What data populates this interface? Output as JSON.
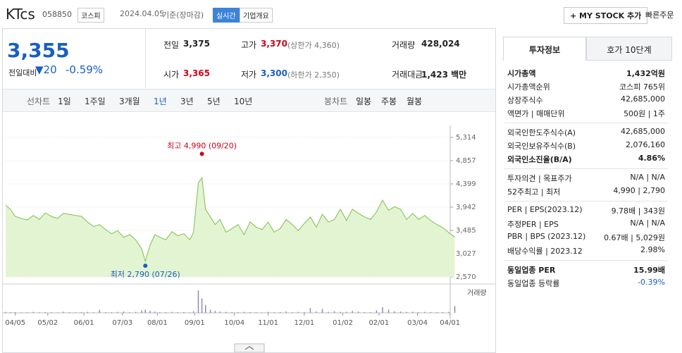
{
  "header": {
    "name": "KTcs",
    "code": "058850",
    "market": "코스피",
    "date": "2024.04.05",
    "basis": "기준(장마감)",
    "realtime": "실시간",
    "company_info": "기업개요",
    "my_stock": "+ MY STOCK 추가",
    "quick_order": "빠른주문"
  },
  "price": {
    "current": "3,355",
    "change_label": "전일대비",
    "change": "20",
    "rate": "-0.59%"
  },
  "quotes": [
    [
      {
        "label": "전일",
        "value": "3,375"
      },
      {
        "label": "고가",
        "value": "3,370",
        "limit": "(상한가 4,360)"
      },
      {
        "label": "거래량",
        "value": "428,024"
      }
    ],
    [
      {
        "label": "시가",
        "value": "3,365"
      },
      {
        "label": "저가",
        "value": "3,300",
        "limit": "(하한가 2,350)"
      },
      {
        "label": "거래대금",
        "value": "1,423 백만"
      }
    ]
  ],
  "periods": {
    "line_label": "선차트",
    "line": [
      "1일",
      "1주일",
      "3개월",
      "1년",
      "3년",
      "5년",
      "10년"
    ],
    "candle_label": "봉차트",
    "candle": [
      "일봉",
      "주봉",
      "월봉"
    ]
  },
  "chart_data": {
    "type": "area",
    "color": "#7cc04a",
    "volume_label": "거래량",
    "x": [
      -8,
      -4,
      0,
      5,
      10,
      15,
      20,
      25,
      30,
      35,
      40,
      45,
      50,
      55,
      60,
      65,
      70,
      75,
      80,
      85,
      90,
      95,
      100,
      105,
      108,
      112,
      116,
      120,
      125,
      130,
      135,
      140,
      145,
      148,
      152,
      155,
      158,
      162,
      166,
      170,
      175,
      180,
      185,
      190,
      195,
      200,
      205,
      210,
      215,
      220,
      225,
      230,
      235,
      240,
      245,
      250,
      255,
      260,
      265,
      270,
      275,
      280,
      285,
      290,
      295,
      300,
      305,
      310,
      315,
      320,
      325,
      330,
      335,
      340,
      345,
      350,
      355,
      360,
      365
    ],
    "series": [
      {
        "name": "주가",
        "values": [
          3980,
          3900,
          3760,
          3720,
          3690,
          3780,
          3700,
          3830,
          3760,
          3720,
          3820,
          3800,
          3780,
          3760,
          3650,
          3560,
          3600,
          3500,
          3420,
          3480,
          3350,
          3400,
          3300,
          3120,
          2880,
          3200,
          3400,
          3350,
          3300,
          3460,
          3380,
          3420,
          3300,
          3450,
          4420,
          4520,
          3900,
          3750,
          3600,
          3700,
          3450,
          3520,
          3600,
          3400,
          3650,
          3550,
          3500,
          3650,
          3450,
          3520,
          3700,
          3600,
          3480,
          3620,
          3750,
          3550,
          3800,
          3650,
          3700,
          3900,
          3680,
          3900,
          3820,
          3750,
          3700,
          3850,
          4080,
          3880,
          3950,
          3900,
          3700,
          3820,
          3700,
          3780,
          3680,
          3600,
          3540,
          3440,
          3355
        ]
      },
      {
        "name": "거래량",
        "axis": "y2",
        "values": [
          60000,
          40000,
          50000,
          30000,
          40000,
          60000,
          30000,
          50000,
          40000,
          30000,
          70000,
          40000,
          30000,
          50000,
          60000,
          40000,
          180000,
          50000,
          40000,
          60000,
          80000,
          40000,
          60000,
          150000,
          200000,
          120000,
          80000,
          50000,
          40000,
          60000,
          40000,
          50000,
          30000,
          100000,
          1400000,
          900000,
          500000,
          200000,
          120000,
          80000,
          60000,
          50000,
          40000,
          60000,
          50000,
          40000,
          30000,
          60000,
          40000,
          50000,
          80000,
          40000,
          60000,
          50000,
          300000,
          80000,
          250000,
          60000,
          100000,
          70000,
          60000,
          120000,
          80000,
          50000,
          40000,
          150000,
          350000,
          200000,
          100000,
          80000,
          60000,
          70000,
          40000,
          60000,
          50000,
          40000,
          50000,
          60000,
          428024
        ]
      }
    ],
    "xlim": [
      -8,
      360
    ],
    "ylim": [
      2570,
      5314
    ],
    "y2lim": [
      0,
      1500000
    ],
    "xticks": [
      {
        "value": 0,
        "label": "04/05"
      },
      {
        "value": 27,
        "label": "05/02"
      },
      {
        "value": 57,
        "label": "06/01"
      },
      {
        "value": 89,
        "label": "07/03"
      },
      {
        "value": 118,
        "label": "08/01"
      },
      {
        "value": 149,
        "label": "09/01"
      },
      {
        "value": 182,
        "label": "10/04"
      },
      {
        "value": 210,
        "label": "11/01"
      },
      {
        "value": 240,
        "label": "12/01"
      },
      {
        "value": 272,
        "label": "01/02"
      },
      {
        "value": 302,
        "label": "02/01"
      },
      {
        "value": 334,
        "label": "03/04"
      },
      {
        "value": 361,
        "label": "04/01"
      }
    ],
    "yticks": [
      {
        "value": 5314,
        "label": "5,314"
      },
      {
        "value": 4857,
        "label": "4,857"
      },
      {
        "value": 4399,
        "label": "4,399"
      },
      {
        "value": 3942,
        "label": "3,942"
      },
      {
        "value": 3485,
        "label": "3,485"
      },
      {
        "value": 3027,
        "label": "3,027"
      },
      {
        "value": 2570,
        "label": "2,570"
      }
    ],
    "annotations": [
      {
        "text": "최고 4,990 (09/20)",
        "x": 155,
        "y": 4990,
        "color": "#d0021b"
      },
      {
        "text": "최저 2,790 (07/26)",
        "x": 108,
        "y": 2790,
        "color": "#1a5fbf"
      }
    ]
  },
  "tabs": [
    "투자정보",
    "호가 10단계"
  ],
  "info": [
    [
      {
        "label": "시가총액",
        "value": "1,432억원"
      },
      {
        "label": "시가총액순위",
        "value": "코스피 765위"
      },
      {
        "label": "상장주식수",
        "value": "42,685,000"
      },
      {
        "label": "액면가 | 매매단위",
        "value": "500원 | 1주"
      }
    ],
    [
      {
        "label": "외국인한도주식수(A)",
        "value": "42,685,000"
      },
      {
        "label": "외국인보유주식수(B)",
        "value": "2,076,160"
      },
      {
        "label": "외국인소진율(B/A)",
        "value": "4.86%"
      }
    ],
    [
      {
        "label": "투자의견 | 목표주가",
        "value": "N/A | N/A"
      },
      {
        "label": "52주최고 | 최저",
        "value": "4,990 | 2,790"
      }
    ],
    [
      {
        "label": "PER | EPS(2023.12)",
        "value": "9.78배 | 343원"
      },
      {
        "label": "추정PER | EPS",
        "value": "N/A | N/A"
      },
      {
        "label": "PBR | BPS (2023.12)",
        "value": "0.67배 | 5,029원"
      },
      {
        "label": "배당수익률 | 2023.12",
        "value": "2.98%"
      }
    ],
    [
      {
        "label": "동일업종 PER",
        "value": "15.99배"
      },
      {
        "label": "동일업종 등락률",
        "value": "-0.39%"
      }
    ]
  ]
}
